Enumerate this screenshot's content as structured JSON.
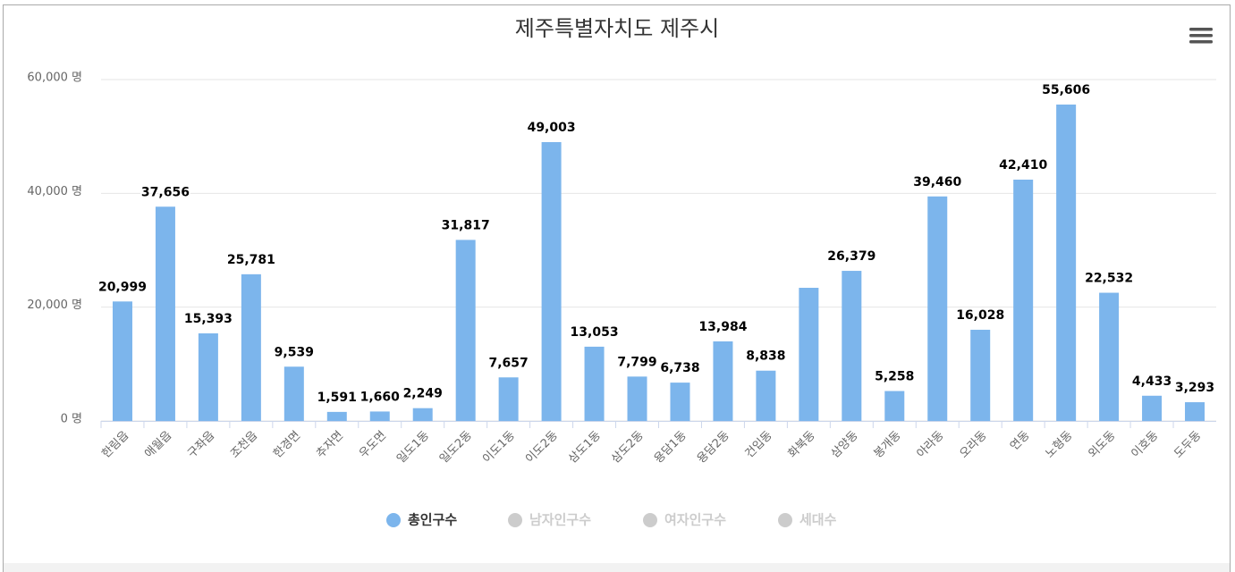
{
  "chart_data": {
    "type": "bar",
    "title": "제주특별자치도 제주시",
    "categories": [
      "한림읍",
      "애월읍",
      "구좌읍",
      "조천읍",
      "한경면",
      "추자면",
      "우도면",
      "일도1동",
      "일도2동",
      "이도1동",
      "이도2동",
      "삼도1동",
      "삼도2동",
      "용담1동",
      "용담2동",
      "건입동",
      "화북동",
      "삼양동",
      "봉개동",
      "아라동",
      "오라동",
      "연동",
      "노형동",
      "외도동",
      "이호동",
      "도두동"
    ],
    "series": [
      {
        "name": "총인구수",
        "color": "#7cb5ec",
        "values": [
          20999,
          37656,
          15393,
          25781,
          9539,
          1591,
          1660,
          2249,
          31817,
          7657,
          49003,
          13053,
          7799,
          6738,
          13984,
          8838,
          23400,
          26379,
          5258,
          39460,
          16028,
          42410,
          55606,
          22532,
          4433,
          3293
        ],
        "value_labels": [
          "20,999",
          "37,656",
          "15,393",
          "25,781",
          "9,539",
          "1,591",
          "1,660",
          "2,249",
          "31,817",
          "7,657",
          "49,003",
          "13,053",
          "7,799",
          "6,738",
          "13,984",
          "8,838",
          null,
          "26,379",
          "5,258",
          "39,460",
          "16,028",
          "42,410",
          "55,606",
          "22,532",
          "4,433",
          "3,293"
        ]
      }
    ],
    "hidden_series": [
      "남자인구수",
      "여자인구수",
      "세대수"
    ],
    "hidden_color": "#cccccc",
    "ylim": [
      0,
      60000
    ],
    "yticks": [
      {
        "value": 0,
        "label": "0 명"
      },
      {
        "value": 20000,
        "label": "20,000 명"
      },
      {
        "value": 40000,
        "label": "40,000 명"
      },
      {
        "value": 60000,
        "label": "60,000 명"
      }
    ],
    "grid": true
  }
}
